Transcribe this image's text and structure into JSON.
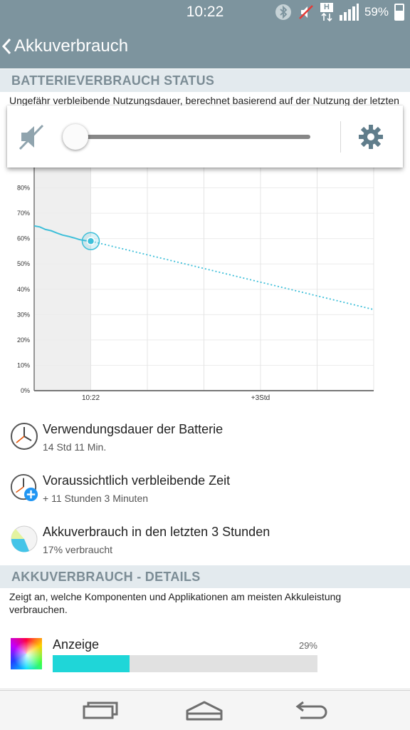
{
  "status_bar": {
    "time": "10:22",
    "network_type": "H",
    "battery_percent": "59%",
    "battery_level": 0.59,
    "icons": [
      "bluetooth-icon",
      "no-sound-icon",
      "data-h-icon",
      "signal-icon",
      "battery-icon"
    ]
  },
  "app_bar": {
    "back_icon": "chevron-left-icon",
    "title": "Akkuverbrauch"
  },
  "status_section": {
    "header": "BATTERIEVERBRAUCH STATUS",
    "description": "Ungefähr verbleibende Nutzungsdauer, berechnet basierend auf der Nutzung der letzten"
  },
  "volume_popup": {
    "mute_icon": "speaker-muted-icon",
    "level": 0,
    "settings_icon": "gear-icon"
  },
  "chart_data": {
    "type": "line",
    "ylim": [
      0,
      90
    ],
    "y_ticks": [
      "0%",
      "10%",
      "20%",
      "30%",
      "40%",
      "50%",
      "60%",
      "70%",
      "80%"
    ],
    "x_ticks": [
      "10:22",
      "+3Std"
    ],
    "grid": true,
    "series": [
      {
        "style": "solid",
        "color": "#3ebfd9",
        "x": [
          0,
          0.1,
          0.2,
          0.3,
          0.4,
          0.5,
          0.6,
          0.7,
          0.8,
          0.9,
          1.0
        ],
        "y": [
          65,
          64.6,
          63.6,
          63.1,
          62.2,
          61.4,
          60.9,
          60.3,
          59.6,
          59.2,
          59
        ]
      },
      {
        "style": "dotted",
        "color": "#3ebfd9",
        "x": [
          1.0,
          6.0
        ],
        "y": [
          59,
          32
        ]
      }
    ],
    "current_marker": {
      "x": 1.0,
      "y": 59
    },
    "past_region_x": [
      0,
      1.0
    ],
    "xlim": [
      0,
      6.0
    ]
  },
  "info_items": [
    {
      "icon": "clock-icon",
      "title": "Verwendungsdauer der Batterie",
      "subtitle": "14 Std 11 Min."
    },
    {
      "icon": "clock-plus-icon",
      "title": "Voraussichtlich verbleibende Zeit",
      "subtitle": "+ 11 Stunden 3 Minuten"
    },
    {
      "icon": "pie-chart-icon",
      "title": "Akkuverbrauch in den letzten 3 Stunden",
      "subtitle": "17% verbraucht"
    }
  ],
  "details_section": {
    "header": "AKKUVERBRAUCH - DETAILS",
    "description": "Zeigt an, welche Komponenten und Applikationen am meisten Akkuleistung verbrauchen."
  },
  "detail_items": [
    {
      "icon": "display-icon",
      "name": "Anzeige",
      "percent": "29%",
      "fraction": 0.29
    }
  ],
  "nav_bar": {
    "recent_icon": "recent-apps-icon",
    "home_icon": "home-icon",
    "back_icon": "back-arrow-icon"
  },
  "colors": {
    "appbar": "#7d949e",
    "accent": "#3ebfd9",
    "bar_fill": "#1fd6d8",
    "section_header_bg": "#e3eaee"
  }
}
